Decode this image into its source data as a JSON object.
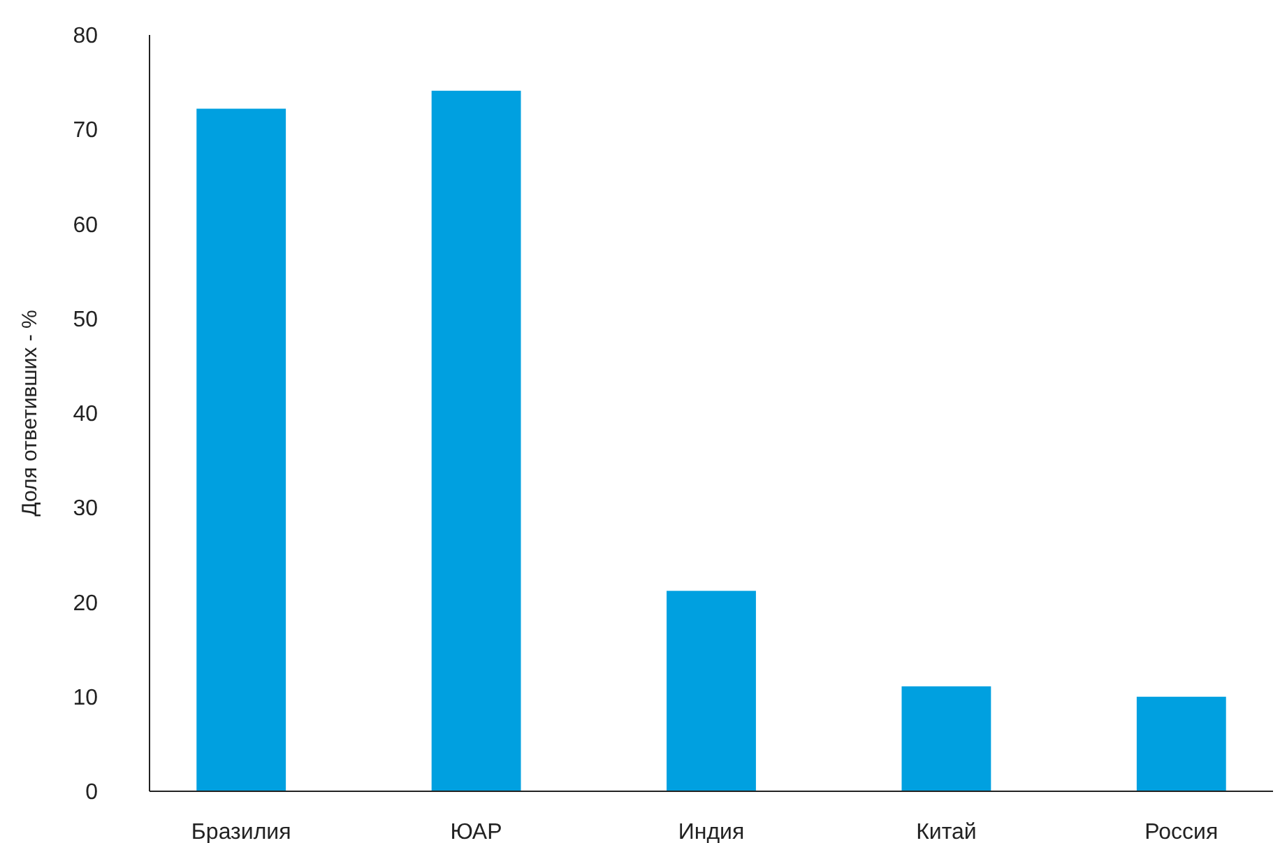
{
  "chart_data": {
    "type": "bar",
    "ylabel": "Доля ответивших - %",
    "categories": [
      "Бразилия",
      "ЮАР",
      "Индия",
      "Китай",
      "Россия"
    ],
    "values": [
      72.2,
      74.1,
      21.2,
      11.1,
      10
    ],
    "color": "#00a0e0",
    "ylim": [
      0,
      80
    ],
    "yticks": [
      0,
      10,
      20,
      30,
      40,
      50,
      60,
      70,
      80
    ],
    "grid": false
  }
}
